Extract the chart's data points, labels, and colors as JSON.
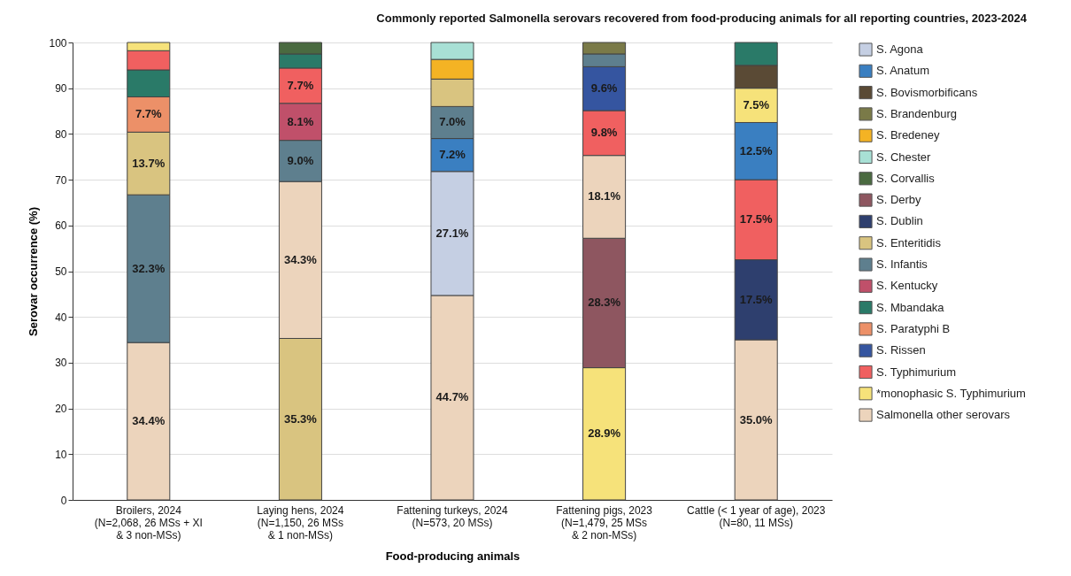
{
  "chart_data": {
    "type": "bar",
    "stacked": true,
    "title": "Commonly reported Salmonella serovars recovered from food-producing animals for all reporting countries, 2023-2024",
    "xlabel": "Food-producing animals",
    "ylabel": "Serovar occurrence (%)",
    "categories": [
      "Broilers, 2024\n(N=2,068, 26 MSs + XI\n& 3 non-MSs)",
      "Laying hens, 2024\n(N=1,150, 26 MSs\n& 1 non-MSs)",
      "Fattening turkeys, 2024\n(N=573, 20 MSs)",
      "Fattening pigs, 2023\n(N=1,479, 25 MSs\n& 2 non-MSs)",
      "Cattle (< 1 year of age), 2023\n(N=80, 11 MSs)"
    ],
    "ylim": [
      0,
      100
    ],
    "yticks": [
      0,
      10,
      20,
      30,
      40,
      50,
      60,
      70,
      80,
      90,
      100
    ],
    "grid": "y",
    "legend": "right",
    "series": [
      {
        "name": "S. Agona",
        "color": "#c5cfe3",
        "values": [
          null,
          null,
          27.1,
          null,
          null
        ],
        "value_labels": [
          null,
          null,
          "27.1%",
          null,
          null
        ]
      },
      {
        "name": "S. Anatum",
        "color": "#3a7fc1",
        "values": [
          null,
          null,
          7.2,
          null,
          12.5
        ],
        "value_labels": [
          null,
          null,
          "7.2%",
          null,
          "12.5%"
        ]
      },
      {
        "name": "S. Bovismorbificans",
        "color": "#5a4a35",
        "values": [
          null,
          null,
          null,
          null,
          5.0
        ],
        "value_labels": [
          null,
          null,
          null,
          null,
          null
        ]
      },
      {
        "name": "S. Brandenburg",
        "color": "#7a7a48",
        "values": [
          null,
          null,
          null,
          2.5,
          null
        ],
        "value_labels": [
          null,
          null,
          null,
          null,
          null
        ]
      },
      {
        "name": "S. Bredeney",
        "color": "#f4b324",
        "values": [
          null,
          null,
          4.3,
          null,
          null
        ],
        "value_labels": [
          null,
          null,
          null,
          null,
          null
        ]
      },
      {
        "name": "S. Chester",
        "color": "#a8e0d5",
        "values": [
          null,
          null,
          3.7,
          null,
          null
        ],
        "value_labels": [
          null,
          null,
          null,
          null,
          null
        ]
      },
      {
        "name": "S. Corvallis",
        "color": "#4a6a40",
        "values": [
          null,
          2.5,
          null,
          null,
          null
        ],
        "value_labels": [
          null,
          null,
          null,
          null,
          null
        ]
      },
      {
        "name": "S. Derby",
        "color": "#8e5660",
        "values": [
          null,
          null,
          null,
          28.3,
          null
        ],
        "value_labels": [
          null,
          null,
          null,
          "28.3%",
          null
        ]
      },
      {
        "name": "S. Dublin",
        "color": "#2e3f6e",
        "values": [
          null,
          null,
          null,
          null,
          17.5
        ],
        "value_labels": [
          null,
          null,
          null,
          null,
          "17.5%"
        ]
      },
      {
        "name": "S. Enteritidis",
        "color": "#d9c480",
        "values": [
          13.7,
          35.3,
          6.0,
          null,
          null
        ],
        "value_labels": [
          "13.7%",
          "35.3%",
          null,
          null,
          null
        ]
      },
      {
        "name": "S. Infantis",
        "color": "#5e7f8e",
        "values": [
          32.3,
          9.0,
          7.0,
          2.8,
          null
        ],
        "value_labels": [
          "32.3%",
          "9.0%",
          "7.0%",
          null,
          null
        ]
      },
      {
        "name": "S. Kentucky",
        "color": "#c0506a",
        "values": [
          null,
          8.1,
          null,
          null,
          null
        ],
        "value_labels": [
          null,
          "8.1%",
          null,
          null,
          null
        ]
      },
      {
        "name": "S. Mbandaka",
        "color": "#2a7a68",
        "values": [
          5.9,
          3.1,
          null,
          null,
          5.0
        ],
        "value_labels": [
          null,
          null,
          null,
          null,
          null
        ]
      },
      {
        "name": "S. Paratyphi B",
        "color": "#ec9068",
        "values": [
          7.7,
          null,
          null,
          null,
          null
        ],
        "value_labels": [
          "7.7%",
          null,
          null,
          null,
          null
        ]
      },
      {
        "name": "S. Rissen",
        "color": "#3555a0",
        "values": [
          null,
          null,
          null,
          9.6,
          null
        ],
        "value_labels": [
          null,
          null,
          null,
          "9.6%",
          null
        ]
      },
      {
        "name": "S. Typhimurium",
        "color": "#f06060",
        "values": [
          4.2,
          7.7,
          null,
          9.8,
          17.5
        ],
        "value_labels": [
          null,
          "7.7%",
          null,
          "9.8%",
          "17.5%"
        ]
      },
      {
        "name": "*monophasic S. Typhimurium",
        "color": "#f6e27a",
        "values": [
          1.8,
          null,
          null,
          28.9,
          7.5
        ],
        "value_labels": [
          null,
          null,
          null,
          "28.9%",
          "7.5%"
        ]
      },
      {
        "name": "Salmonella other serovars",
        "color": "#ecd4bc",
        "values": [
          34.4,
          34.3,
          44.7,
          18.1,
          35.0
        ],
        "value_labels": [
          "34.4%",
          "34.3%",
          "44.7%",
          "18.1%",
          "35.0%"
        ]
      }
    ]
  }
}
